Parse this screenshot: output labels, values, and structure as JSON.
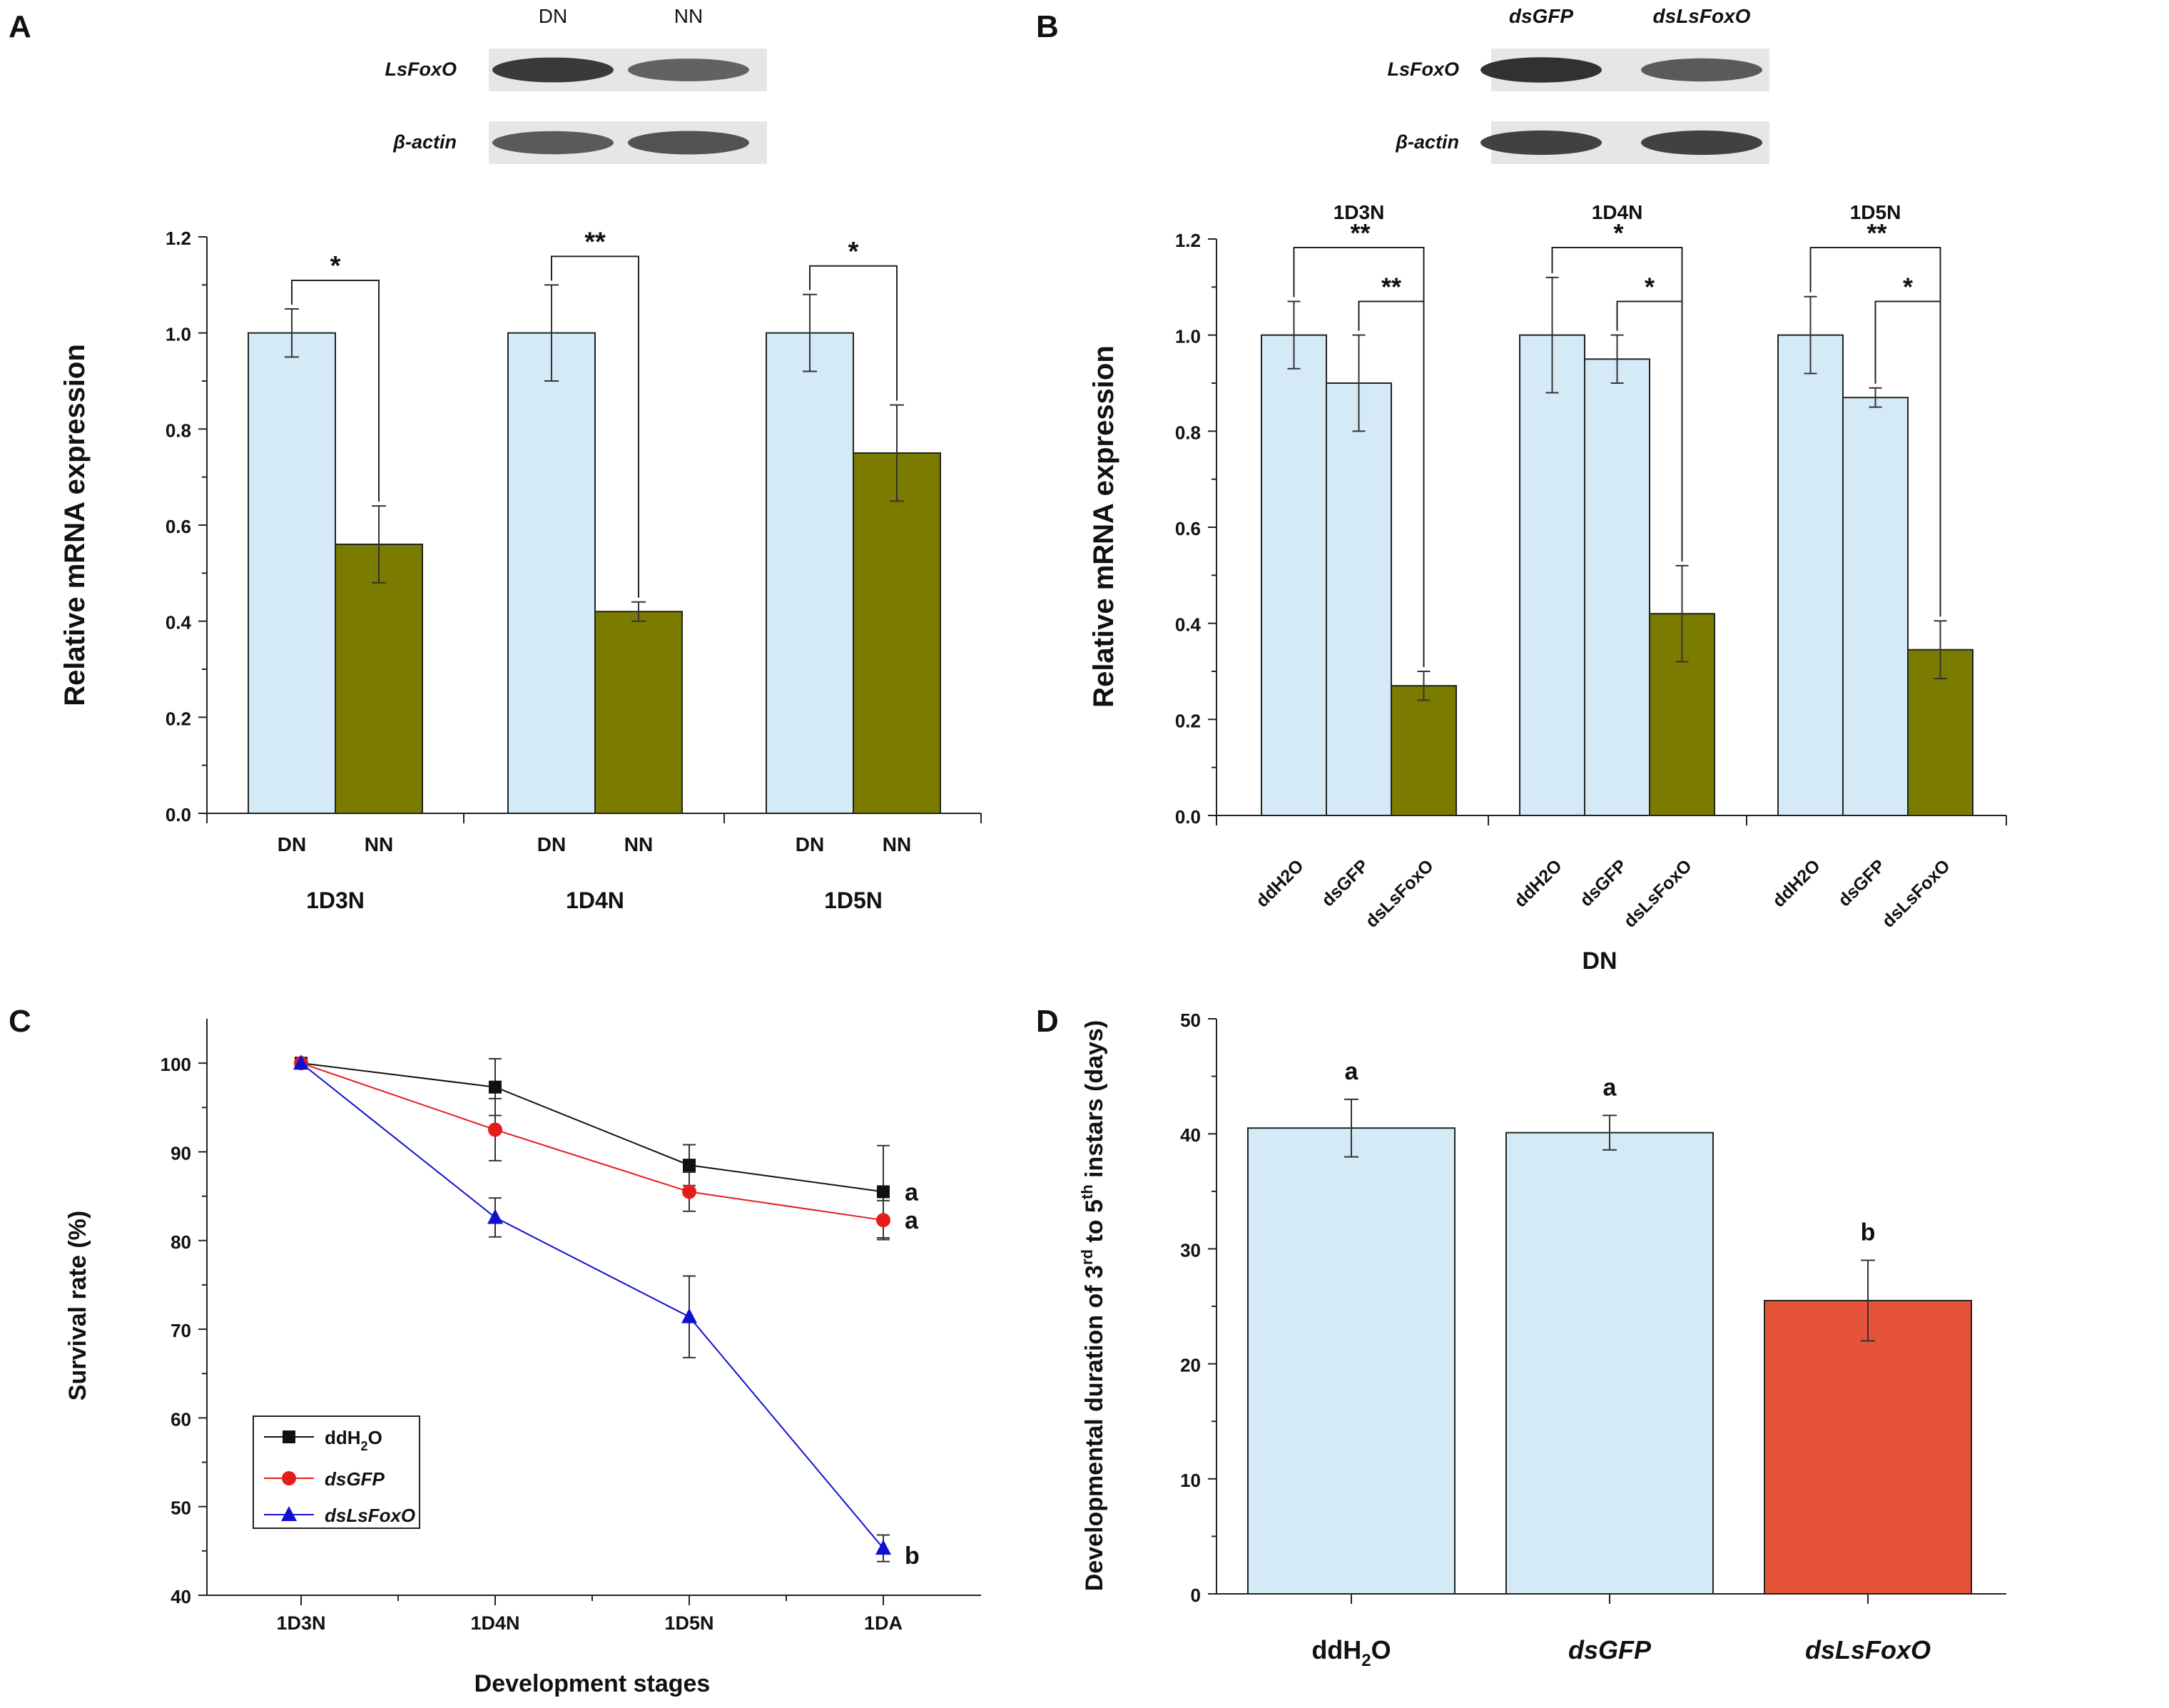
{
  "colors": {
    "light_blue": "#d4eaf7",
    "olive": "#7b7b00",
    "red_bar": "#e4533a",
    "black_series": "#111111",
    "red_series": "#e41c1c",
    "blue_series": "#1010d0",
    "edge": "#222222"
  },
  "panels": {
    "A": {
      "letter": "A"
    },
    "B": {
      "letter": "B"
    },
    "C": {
      "letter": "C"
    },
    "D": {
      "letter": "D"
    }
  },
  "blots": {
    "A": {
      "lanes": [
        "DN",
        "NN"
      ],
      "rows": [
        {
          "label": "LsFoxO",
          "intensity": [
            0.9,
            0.65
          ]
        },
        {
          "label": "β-actin",
          "intensity": [
            0.7,
            0.75
          ]
        }
      ]
    },
    "B": {
      "lanes": [
        "dsGFP",
        "dsLsFoxO"
      ],
      "rows": [
        {
          "label": "LsFoxO",
          "intensity": [
            0.95,
            0.7
          ]
        },
        {
          "label": "β-actin",
          "intensity": [
            0.85,
            0.85
          ]
        }
      ]
    }
  },
  "chart_data": [
    {
      "panel": "A",
      "type": "bar",
      "ylabel": "Relative mRNA expression",
      "ylim": [
        0,
        1.2
      ],
      "yticks": [
        "0.0",
        "0.2",
        "0.4",
        "0.6",
        "0.8",
        "1.0",
        "1.2"
      ],
      "bar_labels": [
        "DN",
        "NN"
      ],
      "groups": [
        {
          "name": "1D3N",
          "values": [
            1.0,
            0.56
          ],
          "errors": [
            0.05,
            0.08
          ],
          "sig": "*"
        },
        {
          "name": "1D4N",
          "values": [
            1.0,
            0.42
          ],
          "errors": [
            0.1,
            0.02
          ],
          "sig": "**"
        },
        {
          "name": "1D5N",
          "values": [
            1.0,
            0.75
          ],
          "errors": [
            0.08,
            0.1
          ],
          "sig": "*"
        }
      ]
    },
    {
      "panel": "B",
      "type": "bar",
      "ylabel": "Relative mRNA expression",
      "xlabel": "DN",
      "ylim": [
        0,
        1.2
      ],
      "yticks": [
        "0.0",
        "0.2",
        "0.4",
        "0.6",
        "0.8",
        "1.0",
        "1.2"
      ],
      "bar_labels": [
        "ddH2O",
        "dsGFP",
        "dsLsFoxO"
      ],
      "groups": [
        {
          "name": "1D3N",
          "values": [
            1.0,
            0.9,
            0.27
          ],
          "errors": [
            0.07,
            0.1,
            0.03
          ],
          "sig_far": "**",
          "sig_near": "**"
        },
        {
          "name": "1D4N",
          "values": [
            1.0,
            0.95,
            0.42
          ],
          "errors": [
            0.12,
            0.05,
            0.1
          ],
          "sig_far": "*",
          "sig_near": "*"
        },
        {
          "name": "1D5N",
          "values": [
            1.0,
            0.87,
            0.345
          ],
          "errors": [
            0.08,
            0.02,
            0.06
          ],
          "sig_far": "**",
          "sig_near": "*"
        }
      ]
    },
    {
      "panel": "C",
      "type": "line",
      "xlabel": "Development stages",
      "ylabel": "Survival rate (%)",
      "ylim": [
        40,
        105
      ],
      "yticks": [
        "40",
        "50",
        "60",
        "70",
        "80",
        "90",
        "100"
      ],
      "categories": [
        "1D3N",
        "1D4N",
        "1D5N",
        "1DA"
      ],
      "series": [
        {
          "name": "ddH",
          "sub": "2",
          "tail": "O",
          "style": "normal",
          "marker": "square",
          "values": [
            100,
            97.3,
            88.5,
            85.5
          ],
          "errors": [
            0,
            3.2,
            2.3,
            5.2
          ],
          "letter": "a"
        },
        {
          "name": "dsGFP",
          "sub": "",
          "tail": "",
          "style": "italic",
          "marker": "circle",
          "values": [
            100,
            92.5,
            85.5,
            82.3
          ],
          "errors": [
            0,
            3.5,
            2.2,
            2.2
          ],
          "letter": "a"
        },
        {
          "name": "dsLsFoxO",
          "sub": "",
          "tail": "",
          "style": "italic",
          "marker": "triangle",
          "values": [
            100,
            82.6,
            71.4,
            45.3
          ],
          "errors": [
            0,
            2.2,
            4.6,
            1.5
          ],
          "letter": "b"
        }
      ]
    },
    {
      "panel": "D",
      "type": "bar",
      "ylabel_main": "Developmental duration of 3",
      "ylabel_sup1": "rd",
      "ylabel_mid": " to 5",
      "ylabel_sup2": "th",
      "ylabel_tail": " instars  (days)",
      "ylim": [
        0,
        50
      ],
      "yticks": [
        "0",
        "10",
        "20",
        "30",
        "40",
        "50"
      ],
      "bars": [
        {
          "label": "ddH",
          "sub": "2",
          "tail": "O",
          "style": "bold",
          "value": 40.5,
          "error": 2.5,
          "letter": "a"
        },
        {
          "label": "dsGFP",
          "sub": "",
          "tail": "",
          "style": "bolditalic",
          "value": 40.1,
          "error": 1.5,
          "letter": "a"
        },
        {
          "label": "dsLsFoxO",
          "sub": "",
          "tail": "",
          "style": "bolditalic",
          "value": 25.5,
          "error": 3.5,
          "letter": "b"
        }
      ]
    }
  ]
}
